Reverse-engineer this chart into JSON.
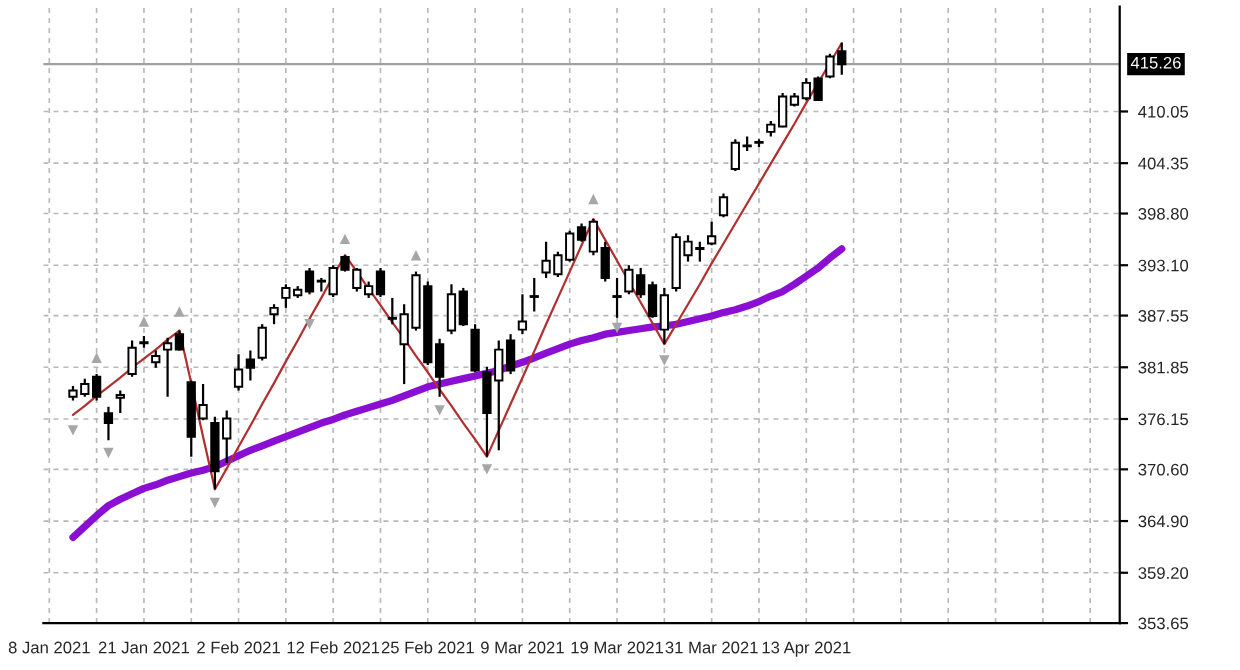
{
  "chart_data": {
    "type": "candlestick",
    "categories": [
      "8 Jan 2021",
      null,
      null,
      null,
      null,
      null,
      null,
      null,
      "21 Jan 2021",
      null,
      null,
      null,
      null,
      null,
      null,
      null,
      "2 Feb 2021",
      null,
      null,
      null,
      null,
      null,
      null,
      null,
      "12 Feb 2021",
      null,
      null,
      null,
      null,
      null,
      null,
      null,
      "25 Feb 2021",
      null,
      null,
      null,
      null,
      null,
      null,
      null,
      "9 Mar 2021",
      null,
      null,
      null,
      null,
      null,
      null,
      null,
      "19 Mar 2021",
      null,
      null,
      null,
      null,
      null,
      null,
      null,
      "31 Mar 2021",
      null,
      null,
      null,
      null,
      null,
      null,
      null,
      "13 Apr 2021",
      null,
      null,
      null,
      null,
      null,
      null,
      null,
      null,
      null,
      null,
      null,
      null,
      null,
      null,
      null,
      null,
      null,
      null,
      null,
      null,
      null,
      null,
      null,
      null,
      null,
      null
    ],
    "ohlc": [
      null,
      null,
      [
        378.6,
        379.8,
        378.2,
        379.3
      ],
      [
        378.9,
        380.6,
        378.6,
        380.0
      ],
      [
        380.8,
        381.1,
        378.2,
        378.6
      ],
      [
        376.8,
        377.5,
        373.8,
        375.7
      ],
      [
        378.5,
        379.3,
        376.8,
        378.8
      ],
      [
        381.1,
        384.8,
        380.8,
        384.0
      ],
      [
        384.5,
        385.3,
        384.0,
        384.6
      ],
      [
        382.4,
        383.7,
        381.8,
        383.1
      ],
      [
        383.8,
        385.1,
        378.6,
        384.5
      ],
      [
        385.5,
        385.9,
        383.7,
        383.8
      ],
      [
        380.2,
        380.4,
        372.0,
        374.2
      ],
      [
        376.2,
        380.0,
        376.0,
        377.7
      ],
      [
        375.7,
        376.4,
        368.4,
        370.4
      ],
      [
        374.0,
        377.1,
        371.3,
        376.2
      ],
      [
        379.7,
        383.3,
        379.3,
        381.6
      ],
      [
        382.7,
        383.7,
        380.4,
        381.8
      ],
      [
        382.9,
        386.6,
        382.6,
        386.2
      ],
      [
        387.7,
        388.8,
        386.6,
        388.4
      ],
      [
        389.5,
        391.0,
        388.4,
        390.6
      ],
      [
        389.8,
        390.8,
        389.5,
        390.4
      ],
      [
        392.4,
        392.8,
        389.9,
        390.2
      ],
      [
        391.3,
        391.7,
        390.2,
        391.4
      ],
      [
        389.9,
        393.1,
        389.6,
        392.8
      ],
      [
        394.0,
        394.2,
        392.4,
        392.6
      ],
      [
        390.6,
        392.8,
        390.2,
        392.6
      ],
      [
        389.9,
        391.3,
        389.5,
        390.8
      ],
      [
        392.4,
        392.8,
        389.6,
        389.9
      ],
      [
        387.3,
        389.5,
        386.6,
        387.2
      ],
      [
        384.4,
        388.8,
        380.0,
        387.7
      ],
      [
        386.2,
        392.4,
        385.9,
        392.0
      ],
      [
        390.8,
        391.3,
        382.1,
        382.4
      ],
      [
        384.4,
        385.0,
        378.6,
        380.8
      ],
      [
        385.9,
        391.0,
        385.5,
        389.9
      ],
      [
        390.2,
        390.6,
        386.4,
        386.6
      ],
      [
        386.0,
        386.6,
        381.3,
        381.5
      ],
      [
        381.3,
        381.9,
        372.0,
        376.8
      ],
      [
        380.4,
        384.8,
        372.7,
        383.8
      ],
      [
        384.8,
        385.5,
        381.1,
        381.5
      ],
      [
        386.0,
        389.9,
        385.5,
        386.9
      ],
      [
        389.6,
        391.7,
        388.0,
        389.7
      ],
      [
        392.3,
        395.7,
        391.7,
        393.6
      ],
      [
        392.1,
        394.6,
        391.8,
        394.2
      ],
      [
        393.7,
        396.9,
        393.5,
        396.6
      ],
      [
        397.3,
        397.7,
        395.7,
        395.9
      ],
      [
        394.6,
        398.2,
        394.2,
        397.9
      ],
      [
        395.0,
        395.7,
        391.3,
        391.7
      ],
      [
        389.7,
        391.7,
        387.3,
        389.6
      ],
      [
        390.2,
        393.1,
        389.9,
        392.6
      ],
      [
        392.0,
        392.8,
        389.5,
        389.9
      ],
      [
        390.9,
        391.3,
        387.3,
        387.5
      ],
      [
        386.0,
        390.6,
        384.4,
        389.8
      ],
      [
        390.6,
        396.6,
        390.2,
        396.2
      ],
      [
        394.2,
        396.4,
        393.5,
        395.7
      ],
      [
        394.9,
        395.7,
        393.5,
        395.0
      ],
      [
        395.5,
        397.9,
        395.3,
        396.3
      ],
      [
        398.6,
        401.0,
        398.4,
        400.6
      ],
      [
        403.7,
        407.0,
        403.5,
        406.6
      ],
      [
        406.2,
        407.3,
        405.7,
        406.3
      ],
      [
        406.6,
        407.0,
        406.1,
        406.7
      ],
      [
        407.8,
        409.0,
        407.3,
        408.6
      ],
      [
        408.4,
        412.1,
        408.3,
        411.7
      ],
      [
        410.8,
        412.1,
        410.6,
        411.7
      ],
      [
        411.5,
        413.7,
        411.3,
        413.2
      ],
      [
        413.7,
        413.9,
        411.2,
        411.3
      ],
      [
        413.9,
        416.4,
        413.7,
        416.1
      ],
      [
        416.7,
        417.6,
        414.1,
        415.26
      ],
      null,
      null,
      null,
      null,
      null,
      null,
      null,
      null,
      null,
      null,
      null,
      null,
      null,
      null,
      null,
      null,
      null,
      null,
      null,
      null,
      null,
      null,
      null
    ],
    "series": [
      {
        "type": "line",
        "color": "#8a0fd2",
        "values": [
          null,
          null,
          363.1,
          364.3,
          365.5,
          366.6,
          367.3,
          367.9,
          368.5,
          368.9,
          369.4,
          369.8,
          370.2,
          370.5,
          370.9,
          371.5,
          372.1,
          372.7,
          373.2,
          373.7,
          374.2,
          374.7,
          375.2,
          375.7,
          376.1,
          376.6,
          377.0,
          377.4,
          377.8,
          378.2,
          378.7,
          379.2,
          379.7,
          380.0,
          380.3,
          380.6,
          380.9,
          381.2,
          381.5,
          382.0,
          382.4,
          382.9,
          383.4,
          383.9,
          384.4,
          384.8,
          385.1,
          385.5,
          385.7,
          385.9,
          386.1,
          386.3,
          386.4,
          386.6,
          386.9,
          387.2,
          387.5,
          387.9,
          388.2,
          388.6,
          389.1,
          389.7,
          390.2,
          391.0,
          391.9,
          392.8,
          393.9,
          394.9,
          null,
          null,
          null,
          null,
          null,
          null,
          null,
          null,
          null,
          null,
          null,
          null,
          null,
          null,
          null,
          null,
          null,
          null,
          null,
          null,
          null,
          null,
          null
        ]
      },
      {
        "type": "line",
        "color": "#b03030",
        "values": [
          null,
          null,
          376.6,
          377.6,
          378.7,
          379.7,
          380.7,
          381.8,
          382.8,
          383.8,
          384.9,
          385.9,
          380.1,
          374.2,
          368.4,
          370.7,
          373.1,
          375.4,
          377.8,
          380.1,
          382.5,
          384.8,
          387.2,
          389.5,
          391.9,
          394.2,
          392.4,
          390.5,
          388.7,
          386.8,
          385.0,
          383.1,
          381.3,
          379.4,
          377.6,
          375.7,
          373.9,
          372.0,
          374.9,
          377.8,
          380.7,
          383.6,
          386.6,
          389.5,
          392.4,
          395.3,
          398.2,
          395.9,
          393.6,
          391.3,
          389.0,
          386.7,
          384.4,
          386.6,
          388.8,
          391.0,
          393.3,
          395.5,
          397.7,
          399.9,
          402.1,
          404.3,
          406.5,
          408.7,
          411.0,
          413.2,
          415.4,
          417.6,
          null,
          null,
          null,
          null,
          null,
          null,
          null,
          null,
          null,
          null,
          null,
          null,
          null,
          null,
          null,
          null,
          null,
          null,
          null,
          null,
          null,
          null,
          null
        ]
      },
      {
        "type": "scatter",
        "marker": "triangle",
        "color": "#a6a6a6",
        "values": [
          null,
          null,
          null,
          null,
          382.9,
          null,
          null,
          null,
          386.9,
          null,
          null,
          388.0,
          null,
          null,
          null,
          null,
          null,
          null,
          null,
          null,
          null,
          null,
          null,
          null,
          null,
          396.0,
          null,
          null,
          null,
          null,
          null,
          394.2,
          null,
          null,
          null,
          null,
          null,
          null,
          null,
          null,
          null,
          null,
          null,
          null,
          null,
          null,
          400.4,
          null,
          null,
          null,
          null,
          null,
          null,
          null,
          null,
          null,
          null,
          null,
          null,
          null,
          null,
          null,
          null,
          null,
          null,
          null,
          null,
          null,
          null,
          null,
          null,
          null,
          null,
          null,
          null,
          null,
          null,
          null,
          null,
          null,
          null,
          null,
          null,
          null,
          null,
          null,
          null,
          null,
          null,
          null,
          null
        ]
      },
      {
        "type": "scatter",
        "marker": "triangle_down",
        "color": "#a6a6a6",
        "values": [
          null,
          null,
          374.9,
          null,
          null,
          372.4,
          null,
          null,
          null,
          null,
          null,
          null,
          null,
          null,
          366.9,
          null,
          null,
          null,
          null,
          null,
          null,
          null,
          386.6,
          null,
          null,
          null,
          null,
          null,
          null,
          null,
          null,
          null,
          null,
          377.1,
          null,
          null,
          null,
          370.6,
          null,
          null,
          null,
          null,
          null,
          null,
          null,
          null,
          null,
          null,
          386.2,
          null,
          null,
          null,
          382.6,
          null,
          null,
          null,
          null,
          null,
          null,
          null,
          null,
          null,
          null,
          null,
          null,
          null,
          null,
          null,
          null,
          null,
          null,
          null,
          null,
          null,
          null,
          null,
          null,
          null,
          null,
          null,
          null,
          null,
          null,
          null,
          null,
          null,
          null,
          null,
          null,
          null,
          null
        ]
      }
    ],
    "ylim": [
      353.65,
      421.6
    ],
    "yticks": [
      353.65,
      {
        "value": 359.2,
        "label": "359.20"
      },
      {
        "value": 364.9,
        "label": "364.90"
      },
      {
        "value": 370.6,
        "label": "370.60"
      },
      376.15,
      381.85,
      387.55,
      {
        "value": 393.1,
        "label": "393.10"
      },
      {
        "value": 398.8,
        "label": "398.80"
      },
      404.35,
      410.05
    ],
    "ref_lines": [
      {
        "axis": "y",
        "value": 415.26,
        "label": "415.26",
        "color": "#a0a0a0"
      }
    ],
    "grid": true
  }
}
